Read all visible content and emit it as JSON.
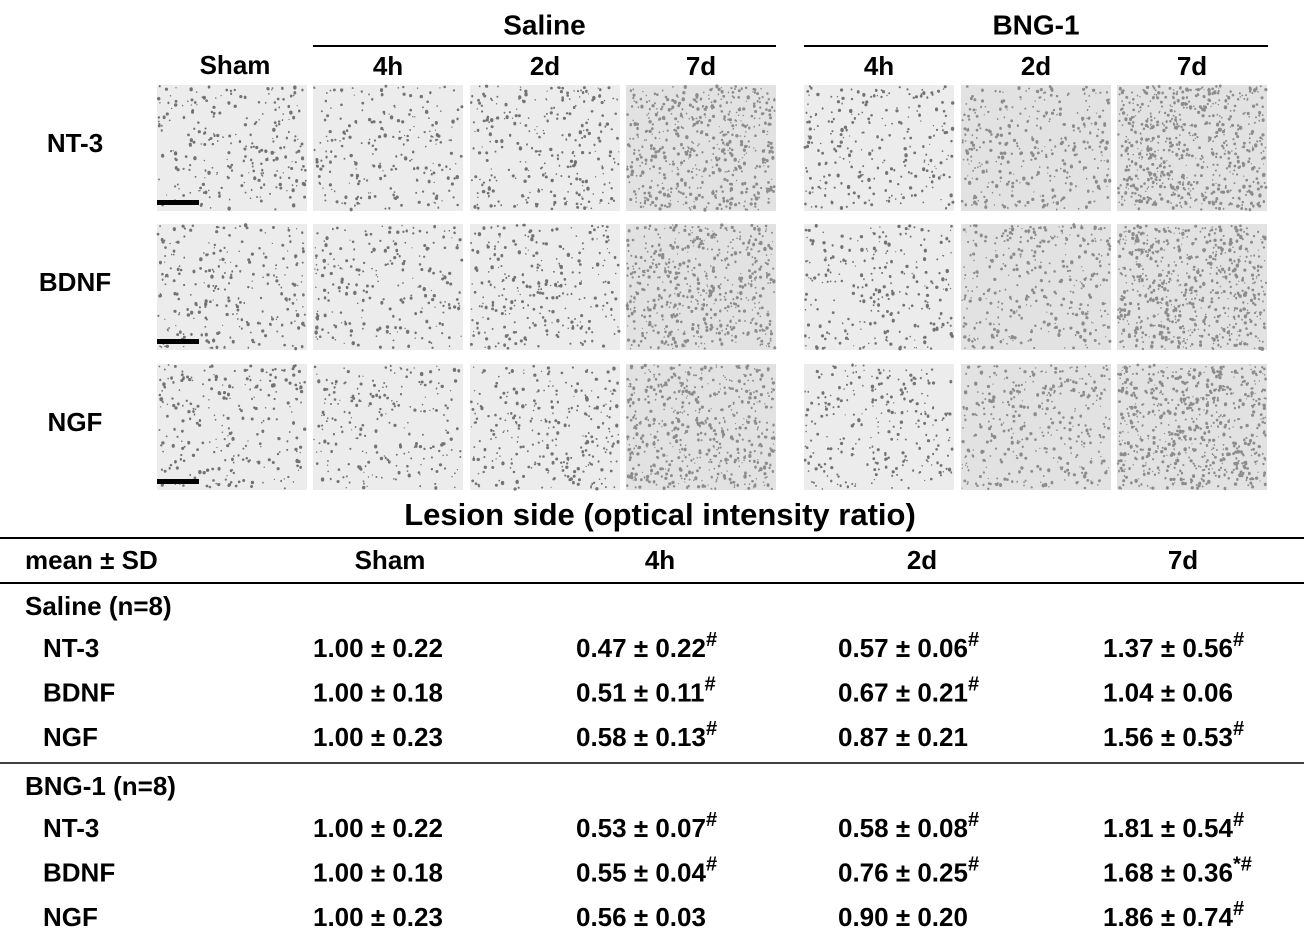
{
  "figure": {
    "groups": [
      {
        "name": "Saline",
        "columns": [
          "4h",
          "2d",
          "7d"
        ]
      },
      {
        "name": "BNG-1",
        "columns": [
          "4h",
          "2d",
          "7d"
        ]
      }
    ],
    "sham_label": "Sham",
    "row_labels": [
      "NT-3",
      "BDNF",
      "NGF"
    ]
  },
  "table": {
    "title": "Lesion side (optical intensity ratio)",
    "header": [
      "mean ± SD",
      "Sham",
      "4h",
      "2d",
      "7d"
    ],
    "sections": [
      {
        "label": "Saline (n=8)",
        "rows": [
          {
            "label": "NT-3",
            "cells": [
              {
                "text": "1.00 ± 0.22"
              },
              {
                "text": "0.47 ± 0.22",
                "sup": "#"
              },
              {
                "text": "0.57 ± 0.06",
                "sup": "#"
              },
              {
                "text": "1.37 ± 0.56",
                "sup": "#"
              }
            ]
          },
          {
            "label": "BDNF",
            "cells": [
              {
                "text": "1.00 ± 0.18"
              },
              {
                "text": "0.51 ± 0.11",
                "sup": "#"
              },
              {
                "text": "0.67 ± 0.21",
                "sup": "#"
              },
              {
                "text": "1.04 ± 0.06"
              }
            ]
          },
          {
            "label": "NGF",
            "cells": [
              {
                "text": "1.00 ± 0.23"
              },
              {
                "text": "0.58 ± 0.13",
                "sup": "#"
              },
              {
                "text": "0.87 ± 0.21"
              },
              {
                "text": "1.56 ± 0.53",
                "sup": "#"
              }
            ]
          }
        ]
      },
      {
        "label": "BNG-1 (n=8)",
        "rows": [
          {
            "label": "NT-3",
            "cells": [
              {
                "text": "1.00 ± 0.22"
              },
              {
                "text": "0.53 ± 0.07",
                "sup": "#"
              },
              {
                "text": "0.58 ± 0.08",
                "sup": "#"
              },
              {
                "text": "1.81 ± 0.54",
                "sup": "#"
              }
            ]
          },
          {
            "label": "BDNF",
            "cells": [
              {
                "text": "1.00 ± 0.18"
              },
              {
                "text": "0.55 ± 0.04",
                "sup": "#"
              },
              {
                "text": "0.76 ± 0.25",
                "sup": "#"
              },
              {
                "text": "1.68 ± 0.36",
                "sup": "*#"
              }
            ]
          },
          {
            "label": "NGF",
            "cells": [
              {
                "text": "1.00 ± 0.23"
              },
              {
                "text": "0.56 ± 0.03"
              },
              {
                "text": "0.90 ± 0.20"
              },
              {
                "text": "1.86 ± 0.74",
                "sup": "#"
              }
            ]
          }
        ]
      }
    ]
  }
}
